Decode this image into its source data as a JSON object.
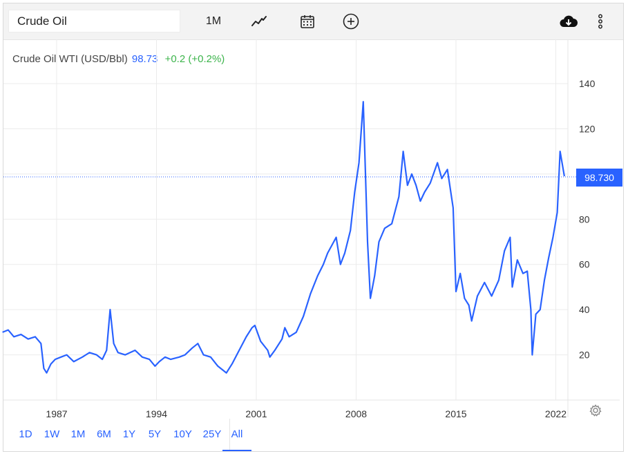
{
  "toolbar": {
    "symbol": "Crude Oil",
    "timeframe": "1M",
    "icons": [
      "line-chart-icon",
      "calendar-icon",
      "add-circle-icon",
      "cloud-download-icon",
      "more-vertical-icon"
    ]
  },
  "header": {
    "name": "Crude Oil WTI (USD/Bbl)",
    "last": "98.73",
    "change": "+0.2 (+0.2%)"
  },
  "price_tag": "98.730",
  "ranges": [
    "1D",
    "1W",
    "1M",
    "6M",
    "1Y",
    "5Y",
    "10Y",
    "25Y",
    "All"
  ],
  "active_range": "All",
  "colors": {
    "line": "#2962ff",
    "accent": "#2962ff",
    "up": "#3cb44b",
    "grid": "#ebebeb"
  },
  "chart_data": {
    "type": "line",
    "y_ticks": [
      20,
      40,
      60,
      80,
      100,
      120,
      140
    ],
    "x_ticks": [
      "1987",
      "1994",
      "2001",
      "2008",
      "2015",
      "2022"
    ],
    "ylim": [
      0,
      140
    ],
    "xlim": [
      1983.2,
      2023.0
    ],
    "last_value": 98.73,
    "grid": true,
    "series": [
      {
        "x": [
          1983.2,
          1983.6,
          1984.0,
          1984.5,
          1985.0,
          1985.5,
          1985.9,
          1986.1,
          1986.3,
          1986.6,
          1986.9,
          1987.3,
          1987.7,
          1988.2,
          1988.8,
          1989.3,
          1989.8,
          1990.2,
          1990.5,
          1990.75,
          1991.0,
          1991.3,
          1991.8,
          1992.5,
          1993.0,
          1993.5,
          1993.9,
          1994.2,
          1994.6,
          1995.0,
          1995.6,
          1996.0,
          1996.5,
          1996.9,
          1997.3,
          1997.8,
          1998.3,
          1998.9,
          1999.3,
          1999.8,
          2000.3,
          2000.7,
          2000.9,
          2001.3,
          2001.8,
          2001.95,
          2002.3,
          2002.8,
          2003.0,
          2003.3,
          2003.8,
          2004.3,
          2004.8,
          2005.3,
          2005.7,
          2006.0,
          2006.6,
          2006.9,
          2007.2,
          2007.6,
          2007.9,
          2008.2,
          2008.5,
          2008.8,
          2009.0,
          2009.3,
          2009.6,
          2010.0,
          2010.5,
          2011.0,
          2011.3,
          2011.6,
          2011.9,
          2012.2,
          2012.5,
          2012.8,
          2013.2,
          2013.7,
          2014.0,
          2014.4,
          2014.8,
          2015.0,
          2015.3,
          2015.6,
          2015.9,
          2016.1,
          2016.5,
          2017.0,
          2017.5,
          2018.0,
          2018.4,
          2018.8,
          2018.95,
          2019.3,
          2019.7,
          2020.0,
          2020.25,
          2020.35,
          2020.6,
          2020.9,
          2021.2,
          2021.5,
          2021.8,
          2022.1,
          2022.3,
          2022.6
        ],
        "y": [
          30,
          31,
          28,
          29,
          27,
          28,
          25,
          14,
          12,
          16,
          18,
          19,
          20,
          17,
          19,
          21,
          20,
          18,
          22,
          40,
          25,
          21,
          20,
          22,
          19,
          18,
          15,
          17,
          19,
          18,
          19,
          20,
          23,
          25,
          20,
          19,
          15,
          12,
          16,
          22,
          28,
          32,
          33,
          26,
          22,
          19,
          22,
          27,
          32,
          28,
          30,
          37,
          47,
          55,
          60,
          65,
          72,
          60,
          65,
          75,
          92,
          105,
          132,
          70,
          45,
          55,
          70,
          76,
          78,
          90,
          110,
          95,
          100,
          95,
          88,
          92,
          96,
          105,
          98,
          102,
          85,
          48,
          56,
          45,
          42,
          35,
          46,
          52,
          46,
          53,
          66,
          72,
          50,
          62,
          56,
          57,
          40,
          20,
          38,
          40,
          53,
          63,
          72,
          83,
          110,
          99
        ]
      }
    ]
  }
}
